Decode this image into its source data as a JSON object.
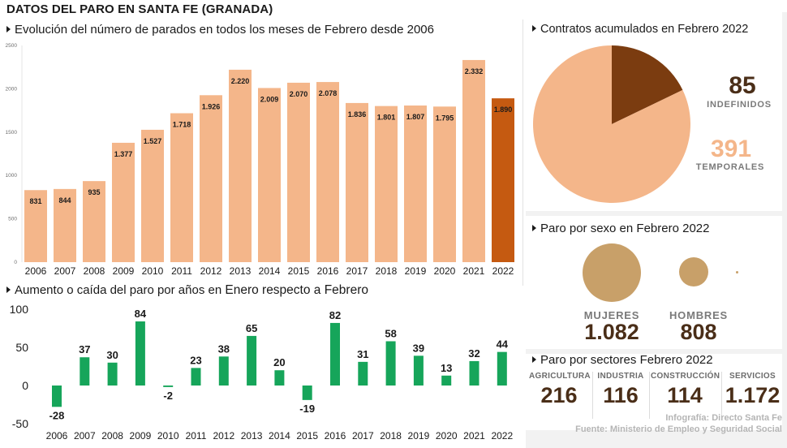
{
  "title": "DATOS DEL PARO EN SANTA FE (GRANADA)",
  "colors": {
    "bar": "#f4b68a",
    "bar_last": "#c55a11",
    "green": "#16a55a",
    "pie_main": "#f4b68a",
    "pie_slice": "#7b3c10",
    "bubble": "#c8a069",
    "dark_text": "#4a2e18",
    "orange_text": "#f4b68a",
    "gray_text": "#7a7a7a"
  },
  "chart_data": [
    {
      "type": "bar",
      "title": "Evolución del número de parados en todos los meses de Febrero desde 2006",
      "categories": [
        "2006",
        "2007",
        "2008",
        "2009",
        "2010",
        "2011",
        "2012",
        "2013",
        "2014",
        "2015",
        "2016",
        "2017",
        "2018",
        "2019",
        "2020",
        "2021",
        "2022"
      ],
      "values": [
        831,
        844,
        935,
        1377,
        1527,
        1718,
        1926,
        2220,
        2009,
        2070,
        2078,
        1836,
        1801,
        1807,
        1795,
        2332,
        1890
      ],
      "data_labels": [
        "831",
        "844",
        "935",
        "1.377",
        "1.527",
        "1.718",
        "1.926",
        "2.220",
        "2.009",
        "2.070",
        "2.078",
        "1.836",
        "1.801",
        "1.807",
        "1.795",
        "2.332",
        "1.890"
      ],
      "yticks": [
        0,
        500,
        1000,
        1500,
        2000,
        2500
      ],
      "ylim": [
        0,
        2500
      ],
      "grid": false
    },
    {
      "type": "bar",
      "title": "Aumento o caída del paro por años en Enero respecto a Febrero",
      "title_parts": [
        "Aumento o caída del paro por años en",
        "Enero respecto a Febrero"
      ],
      "categories": [
        "2006",
        "2007",
        "2008",
        "2009",
        "2010",
        "2011",
        "2012",
        "2013",
        "2014",
        "2015",
        "2016",
        "2017",
        "2018",
        "2019",
        "2020",
        "2021",
        "2022"
      ],
      "values": [
        -28,
        37,
        30,
        84,
        -2,
        23,
        38,
        65,
        20,
        -19,
        82,
        31,
        58,
        39,
        13,
        32,
        44
      ],
      "yticks": [
        -50,
        0,
        50,
        100
      ],
      "ylim": [
        -50,
        100
      ],
      "grid": false
    },
    {
      "type": "pie",
      "title": "Contratos acumulados en Febrero 2022",
      "title_parts": [
        "Contratos acumulados en",
        "Febrero 2022"
      ],
      "labels": [
        "INDEFINIDOS",
        "TEMPORALES"
      ],
      "values": [
        85,
        391
      ]
    }
  ],
  "sexo": {
    "title_parts": [
      "Paro por sexo en",
      "Febrero 2022"
    ],
    "mujeres": {
      "label": "MUJERES",
      "value": 1082,
      "value_text": "1.082"
    },
    "hombres": {
      "label": "HOMBRES",
      "value": 808,
      "value_text": "808"
    }
  },
  "sectores": {
    "title_parts": [
      "Paro por sectores",
      "Febrero 2022"
    ],
    "items": [
      {
        "label": "AGRICULTURA",
        "value": "216"
      },
      {
        "label": "INDUSTRIA",
        "value": "116"
      },
      {
        "label": "CONSTRUCCIÓN",
        "value": "114"
      },
      {
        "label": "SERVICIOS",
        "value": "1.172"
      }
    ]
  },
  "credits": {
    "infografia": "Infografía: Directo Santa Fe",
    "fuente": "Fuente: Ministerio de Empleo y Seguridad Social"
  }
}
